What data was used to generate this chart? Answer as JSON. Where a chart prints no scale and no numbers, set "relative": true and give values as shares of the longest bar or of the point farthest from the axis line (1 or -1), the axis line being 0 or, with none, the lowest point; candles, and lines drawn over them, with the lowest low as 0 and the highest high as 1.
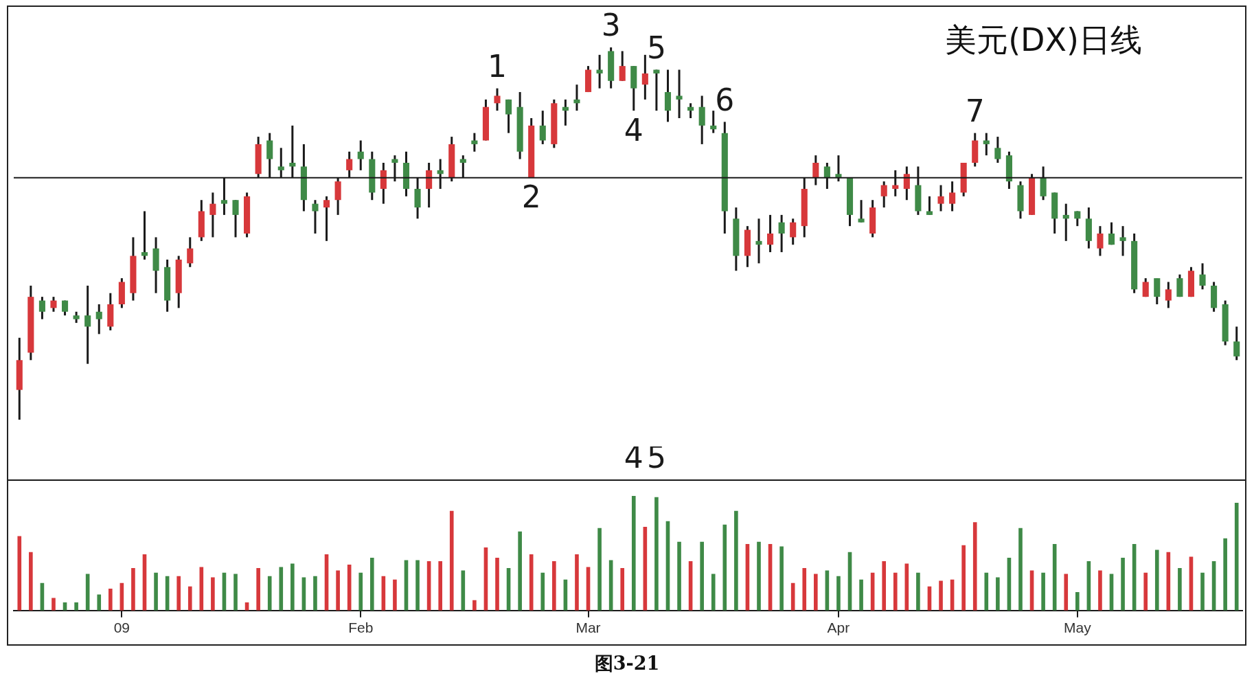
{
  "chart_data": [
    {
      "type": "candlestick",
      "title": "美元(DX)日线",
      "relative": true,
      "tick_labels": false,
      "ohlc": [
        [
          0.08,
          0.22,
          0,
          0.16
        ],
        [
          0.18,
          0.36,
          0.16,
          0.33
        ],
        [
          0.32,
          0.33,
          0.27,
          0.29
        ],
        [
          0.3,
          0.33,
          0.29,
          0.32
        ],
        [
          0.32,
          0.32,
          0.28,
          0.29
        ],
        [
          0.28,
          0.29,
          0.26,
          0.27
        ],
        [
          0.28,
          0.36,
          0.15,
          0.25
        ],
        [
          0.29,
          0.31,
          0.23,
          0.27
        ],
        [
          0.25,
          0.34,
          0.24,
          0.31
        ],
        [
          0.31,
          0.38,
          0.3,
          0.37
        ],
        [
          0.34,
          0.49,
          0.32,
          0.44
        ],
        [
          0.45,
          0.56,
          0.43,
          0.44
        ],
        [
          0.46,
          0.49,
          0.34,
          0.4
        ],
        [
          0.41,
          0.43,
          0.29,
          0.32
        ],
        [
          0.34,
          0.44,
          0.3,
          0.43
        ],
        [
          0.42,
          0.49,
          0.41,
          0.46
        ],
        [
          0.49,
          0.59,
          0.48,
          0.56
        ],
        [
          0.55,
          0.61,
          0.49,
          0.58
        ],
        [
          0.59,
          0.65,
          0.55,
          0.58
        ],
        [
          0.59,
          0.59,
          0.49,
          0.55
        ],
        [
          0.5,
          0.61,
          0.49,
          0.6
        ],
        [
          0.66,
          0.76,
          0.65,
          0.74
        ],
        [
          0.75,
          0.77,
          0.65,
          0.7
        ],
        [
          0.68,
          0.73,
          0.65,
          0.67
        ],
        [
          0.69,
          0.79,
          0.65,
          0.68
        ],
        [
          0.68,
          0.74,
          0.56,
          0.59
        ],
        [
          0.58,
          0.59,
          0.5,
          0.56
        ],
        [
          0.57,
          0.6,
          0.48,
          0.59
        ],
        [
          0.59,
          0.65,
          0.55,
          0.64
        ],
        [
          0.67,
          0.72,
          0.65,
          0.7
        ],
        [
          0.72,
          0.75,
          0.67,
          0.7
        ],
        [
          0.7,
          0.72,
          0.59,
          0.61
        ],
        [
          0.62,
          0.69,
          0.58,
          0.67
        ],
        [
          0.7,
          0.71,
          0.64,
          0.69
        ],
        [
          0.69,
          0.72,
          0.6,
          0.62
        ],
        [
          0.62,
          0.65,
          0.54,
          0.57
        ],
        [
          0.62,
          0.69,
          0.57,
          0.67
        ],
        [
          0.67,
          0.7,
          0.62,
          0.66
        ],
        [
          0.65,
          0.76,
          0.64,
          0.74
        ],
        [
          0.7,
          0.71,
          0.65,
          0.69
        ],
        [
          0.75,
          0.77,
          0.72,
          0.74
        ],
        [
          0.75,
          0.86,
          0.75,
          0.84
        ],
        [
          0.85,
          0.89,
          0.83,
          0.87
        ],
        [
          0.86,
          0.86,
          0.77,
          0.82
        ],
        [
          0.84,
          0.88,
          0.7,
          0.72
        ],
        [
          0.65,
          0.81,
          0.65,
          0.79
        ],
        [
          0.79,
          0.83,
          0.74,
          0.75
        ],
        [
          0.74,
          0.86,
          0.73,
          0.85
        ],
        [
          0.84,
          0.86,
          0.79,
          0.83
        ],
        [
          0.86,
          0.9,
          0.83,
          0.85
        ],
        [
          0.88,
          0.95,
          0.88,
          0.94
        ],
        [
          0.94,
          0.98,
          0.89,
          0.93
        ],
        [
          0.99,
          1,
          0.89,
          0.91
        ],
        [
          0.91,
          0.99,
          0.91,
          0.95
        ],
        [
          0.95,
          0.95,
          0.83,
          0.89
        ],
        [
          0.9,
          0.98,
          0.86,
          0.93
        ],
        [
          0.94,
          0.94,
          0.83,
          0.93
        ],
        [
          0.88,
          0.94,
          0.8,
          0.83
        ],
        [
          0.87,
          0.94,
          0.81,
          0.86
        ],
        [
          0.84,
          0.85,
          0.81,
          0.83
        ],
        [
          0.84,
          0.87,
          0.74,
          0.79
        ],
        [
          0.79,
          0.83,
          0.77,
          0.78
        ],
        [
          0.77,
          0.8,
          0.5,
          0.56
        ],
        [
          0.54,
          0.57,
          0.4,
          0.44
        ],
        [
          0.44,
          0.52,
          0.41,
          0.51
        ],
        [
          0.48,
          0.54,
          0.42,
          0.47
        ],
        [
          0.47,
          0.55,
          0.45,
          0.5
        ],
        [
          0.53,
          0.55,
          0.45,
          0.5
        ],
        [
          0.49,
          0.54,
          0.47,
          0.53
        ],
        [
          0.52,
          0.65,
          0.49,
          0.62
        ],
        [
          0.65,
          0.71,
          0.63,
          0.69
        ],
        [
          0.68,
          0.69,
          0.62,
          0.65
        ],
        [
          0.66,
          0.71,
          0.64,
          0.65
        ],
        [
          0.65,
          0.65,
          0.52,
          0.55
        ],
        [
          0.54,
          0.59,
          0.53,
          0.53
        ],
        [
          0.5,
          0.59,
          0.49,
          0.57
        ],
        [
          0.6,
          0.64,
          0.57,
          0.63
        ],
        [
          0.62,
          0.67,
          0.6,
          0.63
        ],
        [
          0.62,
          0.68,
          0.59,
          0.66
        ],
        [
          0.63,
          0.68,
          0.55,
          0.56
        ],
        [
          0.56,
          0.6,
          0.55,
          0.55
        ],
        [
          0.58,
          0.63,
          0.56,
          0.6
        ],
        [
          0.58,
          0.64,
          0.56,
          0.61
        ],
        [
          0.61,
          0.69,
          0.6,
          0.69
        ],
        [
          0.69,
          0.77,
          0.68,
          0.75
        ],
        [
          0.75,
          0.77,
          0.71,
          0.74
        ],
        [
          0.73,
          0.76,
          0.69,
          0.7
        ],
        [
          0.71,
          0.72,
          0.62,
          0.64
        ],
        [
          0.63,
          0.64,
          0.54,
          0.56
        ],
        [
          0.55,
          0.66,
          0.55,
          0.65
        ],
        [
          0.65,
          0.68,
          0.59,
          0.6
        ],
        [
          0.61,
          0.61,
          0.5,
          0.54
        ],
        [
          0.55,
          0.58,
          0.48,
          0.54
        ],
        [
          0.56,
          0.56,
          0.52,
          0.54
        ],
        [
          0.54,
          0.57,
          0.46,
          0.48
        ],
        [
          0.46,
          0.52,
          0.44,
          0.5
        ],
        [
          0.5,
          0.53,
          0.47,
          0.47
        ],
        [
          0.49,
          0.52,
          0.44,
          0.48
        ],
        [
          0.48,
          0.5,
          0.34,
          0.35
        ],
        [
          0.33,
          0.38,
          0.33,
          0.37
        ],
        [
          0.38,
          0.38,
          0.31,
          0.33
        ],
        [
          0.32,
          0.37,
          0.3,
          0.35
        ],
        [
          0.38,
          0.39,
          0.33,
          0.33
        ],
        [
          0.33,
          0.41,
          0.33,
          0.4
        ],
        [
          0.39,
          0.42,
          0.35,
          0.36
        ],
        [
          0.36,
          0.37,
          0.29,
          0.3
        ],
        [
          0.31,
          0.32,
          0.2,
          0.21
        ],
        [
          0.21,
          0.25,
          0.16,
          0.17
        ]
      ],
      "colors": [
        "#d7383b",
        "#d7383b",
        "#3f8a47",
        "#d7383b",
        "#3f8a47",
        "#3f8a47",
        "#3f8a47",
        "#3f8a47",
        "#d7383b",
        "#d7383b",
        "#d7383b",
        "#3f8a47",
        "#3f8a47",
        "#3f8a47",
        "#d7383b",
        "#d7383b",
        "#d7383b",
        "#d7383b",
        "#3f8a47",
        "#3f8a47",
        "#d7383b",
        "#d7383b",
        "#3f8a47",
        "#3f8a47",
        "#3f8a47",
        "#3f8a47",
        "#3f8a47",
        "#d7383b",
        "#d7383b",
        "#d7383b",
        "#3f8a47",
        "#3f8a47",
        "#d7383b",
        "#3f8a47",
        "#3f8a47",
        "#3f8a47",
        "#d7383b",
        "#3f8a47",
        "#d7383b",
        "#3f8a47",
        "#3f8a47",
        "#d7383b",
        "#d7383b",
        "#3f8a47",
        "#3f8a47",
        "#d7383b",
        "#3f8a47",
        "#d7383b",
        "#3f8a47",
        "#3f8a47",
        "#d7383b",
        "#3f8a47",
        "#3f8a47",
        "#d7383b",
        "#3f8a47",
        "#d7383b",
        "#3f8a47",
        "#3f8a47",
        "#3f8a47",
        "#3f8a47",
        "#3f8a47",
        "#3f8a47",
        "#3f8a47",
        "#3f8a47",
        "#d7383b",
        "#3f8a47",
        "#d7383b",
        "#3f8a47",
        "#d7383b",
        "#d7383b",
        "#d7383b",
        "#3f8a47",
        "#3f8a47",
        "#3f8a47",
        "#3f8a47",
        "#d7383b",
        "#d7383b",
        "#d7383b",
        "#d7383b",
        "#3f8a47",
        "#3f8a47",
        "#d7383b",
        "#d7383b",
        "#d7383b",
        "#d7383b",
        "#3f8a47",
        "#3f8a47",
        "#3f8a47",
        "#3f8a47",
        "#d7383b",
        "#3f8a47",
        "#3f8a47",
        "#3f8a47",
        "#3f8a47",
        "#3f8a47",
        "#d7383b",
        "#3f8a47",
        "#3f8a47",
        "#3f8a47",
        "#d7383b",
        "#3f8a47",
        "#d7383b",
        "#3f8a47",
        "#d7383b",
        "#3f8a47",
        "#3f8a47",
        "#3f8a47",
        "#3f8a47"
      ],
      "ref_lines": [
        {
          "axis": "y",
          "value": 0.65
        }
      ],
      "annotations": [
        "1",
        "2",
        "3",
        "4",
        "5",
        "6",
        "7"
      ]
    },
    {
      "type": "bar",
      "relative": true,
      "categories": [
        null,
        null,
        null,
        null,
        null,
        null,
        null,
        null,
        null,
        "09",
        null,
        null,
        null,
        null,
        null,
        null,
        null,
        null,
        null,
        null,
        null,
        null,
        null,
        null,
        null,
        null,
        null,
        null,
        null,
        null,
        "Feb",
        null,
        null,
        null,
        null,
        null,
        null,
        null,
        null,
        null,
        null,
        null,
        null,
        null,
        null,
        null,
        null,
        null,
        null,
        null,
        "Mar",
        null,
        null,
        null,
        null,
        null,
        null,
        null,
        null,
        null,
        null,
        null,
        null,
        null,
        null,
        null,
        null,
        null,
        null,
        null,
        null,
        null,
        "Apr",
        null,
        null,
        null,
        null,
        null,
        null,
        null,
        null,
        null,
        null,
        null,
        null,
        null,
        null,
        null,
        null,
        null,
        null,
        null,
        null,
        "May",
        null,
        null,
        null,
        null,
        null,
        null,
        null,
        null,
        null,
        null,
        null,
        null,
        null,
        null
      ],
      "values": [
        0.65,
        0.51,
        0.24,
        0.11,
        0.07,
        0.07,
        0.32,
        0.14,
        0.19,
        0.24,
        0.37,
        0.49,
        0.33,
        0.3,
        0.3,
        0.21,
        0.38,
        0.29,
        0.33,
        0.32,
        0.07,
        0.37,
        0.3,
        0.38,
        0.41,
        0.29,
        0.3,
        0.49,
        0.35,
        0.4,
        0.33,
        0.46,
        0.3,
        0.27,
        0.44,
        0.44,
        0.43,
        0.43,
        0.87,
        0.35,
        0.09,
        0.55,
        0.46,
        0.37,
        0.69,
        0.49,
        0.33,
        0.43,
        0.27,
        0.49,
        0.38,
        0.72,
        0.44,
        0.37,
        1,
        0.73,
        0.99,
        0.78,
        0.6,
        0.43,
        0.6,
        0.32,
        0.75,
        0.87,
        0.58,
        0.6,
        0.58,
        0.56,
        0.24,
        0.37,
        0.32,
        0.35,
        0.3,
        0.51,
        0.27,
        0.33,
        0.43,
        0.33,
        0.41,
        0.33,
        0.21,
        0.26,
        0.27,
        0.57,
        0.77,
        0.33,
        0.29,
        0.46,
        0.72,
        0.35,
        0.33,
        0.58,
        0.32,
        0.16,
        0.43,
        0.35,
        0.32,
        0.46,
        0.58,
        0.33,
        0.53,
        0.51,
        0.37,
        0.47,
        0.33,
        0.43,
        0.63,
        0.94
      ],
      "colors": [
        "#d7383b",
        "#d7383b",
        "#3f8a47",
        "#d7383b",
        "#3f8a47",
        "#3f8a47",
        "#3f8a47",
        "#3f8a47",
        "#d7383b",
        "#d7383b",
        "#d7383b",
        "#d7383b",
        "#3f8a47",
        "#3f8a47",
        "#d7383b",
        "#d7383b",
        "#d7383b",
        "#d7383b",
        "#3f8a47",
        "#3f8a47",
        "#d7383b",
        "#d7383b",
        "#3f8a47",
        "#3f8a47",
        "#3f8a47",
        "#3f8a47",
        "#3f8a47",
        "#d7383b",
        "#d7383b",
        "#d7383b",
        "#3f8a47",
        "#3f8a47",
        "#d7383b",
        "#d7383b",
        "#3f8a47",
        "#3f8a47",
        "#d7383b",
        "#d7383b",
        "#d7383b",
        "#3f8a47",
        "#d7383b",
        "#d7383b",
        "#d7383b",
        "#3f8a47",
        "#3f8a47",
        "#d7383b",
        "#3f8a47",
        "#d7383b",
        "#3f8a47",
        "#d7383b",
        "#d7383b",
        "#3f8a47",
        "#3f8a47",
        "#d7383b",
        "#3f8a47",
        "#d7383b",
        "#3f8a47",
        "#3f8a47",
        "#3f8a47",
        "#d7383b",
        "#3f8a47",
        "#3f8a47",
        "#3f8a47",
        "#3f8a47",
        "#d7383b",
        "#3f8a47",
        "#d7383b",
        "#3f8a47",
        "#d7383b",
        "#d7383b",
        "#d7383b",
        "#3f8a47",
        "#3f8a47",
        "#3f8a47",
        "#3f8a47",
        "#d7383b",
        "#d7383b",
        "#d7383b",
        "#d7383b",
        "#3f8a47",
        "#d7383b",
        "#d7383b",
        "#d7383b",
        "#d7383b",
        "#d7383b",
        "#3f8a47",
        "#3f8a47",
        "#3f8a47",
        "#3f8a47",
        "#d7383b",
        "#3f8a47",
        "#3f8a47",
        "#d7383b",
        "#3f8a47",
        "#3f8a47",
        "#d7383b",
        "#3f8a47",
        "#3f8a47",
        "#3f8a47",
        "#d7383b",
        "#3f8a47",
        "#d7383b",
        "#3f8a47",
        "#d7383b",
        "#3f8a47",
        "#3f8a47",
        "#3f8a47",
        "#3f8a47"
      ],
      "annotations": [
        "4",
        "5",
        "图3-21"
      ]
    }
  ]
}
